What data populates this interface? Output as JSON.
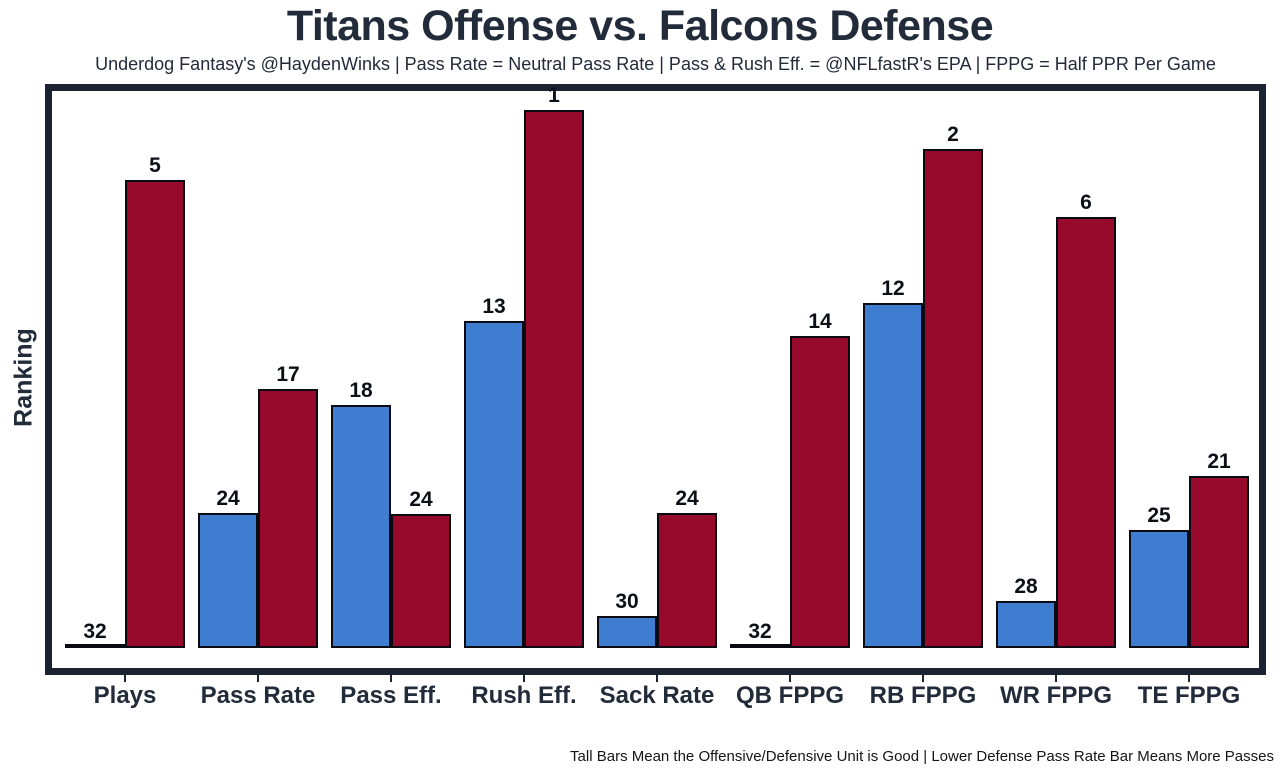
{
  "title": "Titans Offense vs. Falcons Defense",
  "subtitle": "Underdog Fantasy's @HaydenWinks | Pass Rate = Neutral Pass Rate | Pass & Rush Eff. = @NFLfastR's EPA | FPPG = Half PPR Per Game",
  "caption": "Tall Bars Mean the Offensive/Defensive Unit is Good | Lower Defense Pass Rate Bar Means More Passes",
  "ylabel": "Ranking",
  "colors": {
    "offense_bar": "#3e7dd0",
    "defense_bar": "#980a2c",
    "bar_outline": "#0a0a12",
    "frame": "#1b2330",
    "text": "#222b3a",
    "value_label": "#0c0f15"
  },
  "chart_data": {
    "type": "bar",
    "title": "Titans Offense vs. Falcons Defense",
    "ylabel": "Ranking",
    "grid": false,
    "legend": "none",
    "value_labels": "NFL rank shown above each bar (1 = best of 32, 32 = worst; bar height increases as rank improves)",
    "categories": [
      "Plays",
      "Pass Rate",
      "Pass Eff.",
      "Rush Eff.",
      "Sack Rate",
      "QB FPPG",
      "RB FPPG",
      "WR FPPG",
      "TE FPPG"
    ],
    "series": [
      {
        "name": "Titans Offense",
        "color_key": "offense_bar",
        "ranks": [
          32,
          24,
          18,
          13,
          30,
          32,
          12,
          28,
          25
        ],
        "height_frac": [
          0.004,
          0.242,
          0.436,
          0.586,
          0.057,
          0.004,
          0.618,
          0.084,
          0.212
        ]
      },
      {
        "name": "Falcons Defense",
        "color_key": "defense_bar",
        "ranks": [
          5,
          17,
          24,
          1,
          24,
          14,
          2,
          6,
          21
        ],
        "height_frac": [
          0.839,
          0.464,
          0.24,
          0.964,
          0.242,
          0.559,
          0.894,
          0.772,
          0.308
        ]
      }
    ]
  }
}
